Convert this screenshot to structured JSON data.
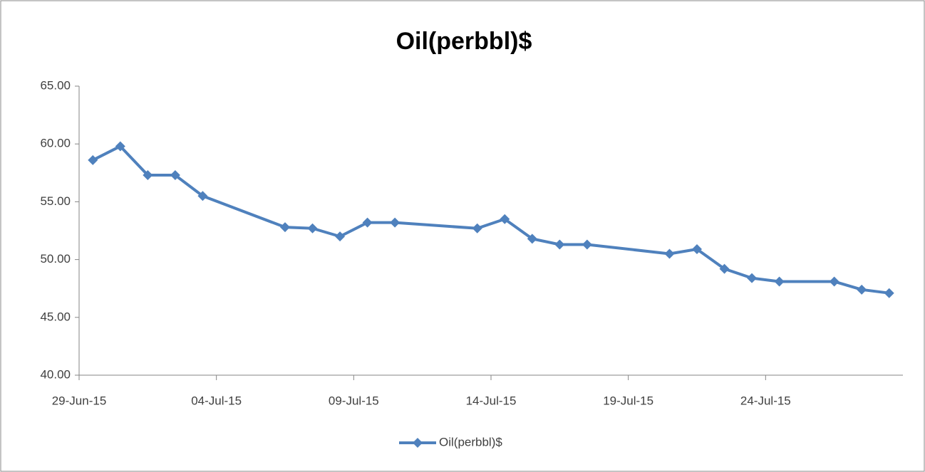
{
  "chart_data": {
    "type": "line",
    "title": "Oil(perbbl)$",
    "x": [
      "2015-06-29",
      "2015-06-30",
      "2015-07-01",
      "2015-07-02",
      "2015-07-03",
      "2015-07-06",
      "2015-07-07",
      "2015-07-08",
      "2015-07-09",
      "2015-07-10",
      "2015-07-13",
      "2015-07-14",
      "2015-07-15",
      "2015-07-16",
      "2015-07-17",
      "2015-07-20",
      "2015-07-21",
      "2015-07-22",
      "2015-07-23",
      "2015-07-24",
      "2015-07-26",
      "2015-07-27",
      "2015-07-28"
    ],
    "series": [
      {
        "name": "Oil(perbbl)$",
        "color": "#4f81bd",
        "values": [
          58.6,
          59.8,
          57.3,
          57.3,
          55.5,
          52.8,
          52.7,
          52.0,
          53.2,
          53.2,
          52.7,
          53.5,
          51.8,
          51.3,
          51.3,
          50.5,
          50.9,
          49.2,
          48.4,
          48.1,
          48.1,
          47.4,
          47.1
        ]
      }
    ],
    "xlim": [
      "2015-06-29",
      "2015-07-29"
    ],
    "xticks": [
      {
        "value": "2015-06-29",
        "label": "29-Jun-15"
      },
      {
        "value": "2015-07-04",
        "label": "04-Jul-15"
      },
      {
        "value": "2015-07-09",
        "label": "09-Jul-15"
      },
      {
        "value": "2015-07-14",
        "label": "14-Jul-15"
      },
      {
        "value": "2015-07-19",
        "label": "19-Jul-15"
      },
      {
        "value": "2015-07-24",
        "label": "24-Jul-15"
      }
    ],
    "ylim": [
      40,
      65
    ],
    "yticks": [
      {
        "value": 40,
        "label": "40.00"
      },
      {
        "value": 45,
        "label": "45.00"
      },
      {
        "value": 50,
        "label": "50.00"
      },
      {
        "value": 55,
        "label": "55.00"
      },
      {
        "value": 60,
        "label": "60.00"
      },
      {
        "value": 65,
        "label": "65.00"
      }
    ],
    "legend": "bottom",
    "grid": false
  }
}
